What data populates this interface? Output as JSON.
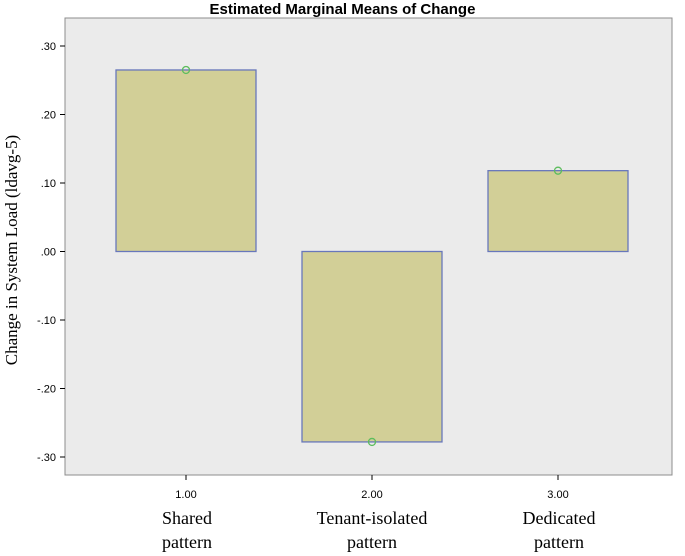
{
  "chart_data": {
    "type": "bar",
    "title": "Estimated Marginal Means of Change",
    "ylabel": "Change in System Load (ldavg-5)",
    "xlabel": "",
    "categories": [
      "1.00",
      "2.00",
      "3.00"
    ],
    "category_labels": [
      [
        "Shared",
        "pattern"
      ],
      [
        "Tenant-isolated",
        "pattern"
      ],
      [
        "Dedicated",
        "pattern"
      ]
    ],
    "values": [
      0.265,
      -0.278,
      0.118
    ],
    "ylim": [
      -0.32,
      0.32
    ],
    "yticks": [
      0.3,
      0.2,
      0.1,
      0.0,
      -0.1,
      -0.2,
      -0.3
    ],
    "ytick_labels": [
      ".30",
      ".20",
      ".10",
      ".00",
      "-.10",
      "-.20",
      "-.30"
    ],
    "grid": false,
    "plot_background": "#ebebeb",
    "bar_fill": "#d2cf97",
    "bar_stroke": "#6877bb",
    "marker_color": "#5dbd5d",
    "marker": "circle"
  }
}
